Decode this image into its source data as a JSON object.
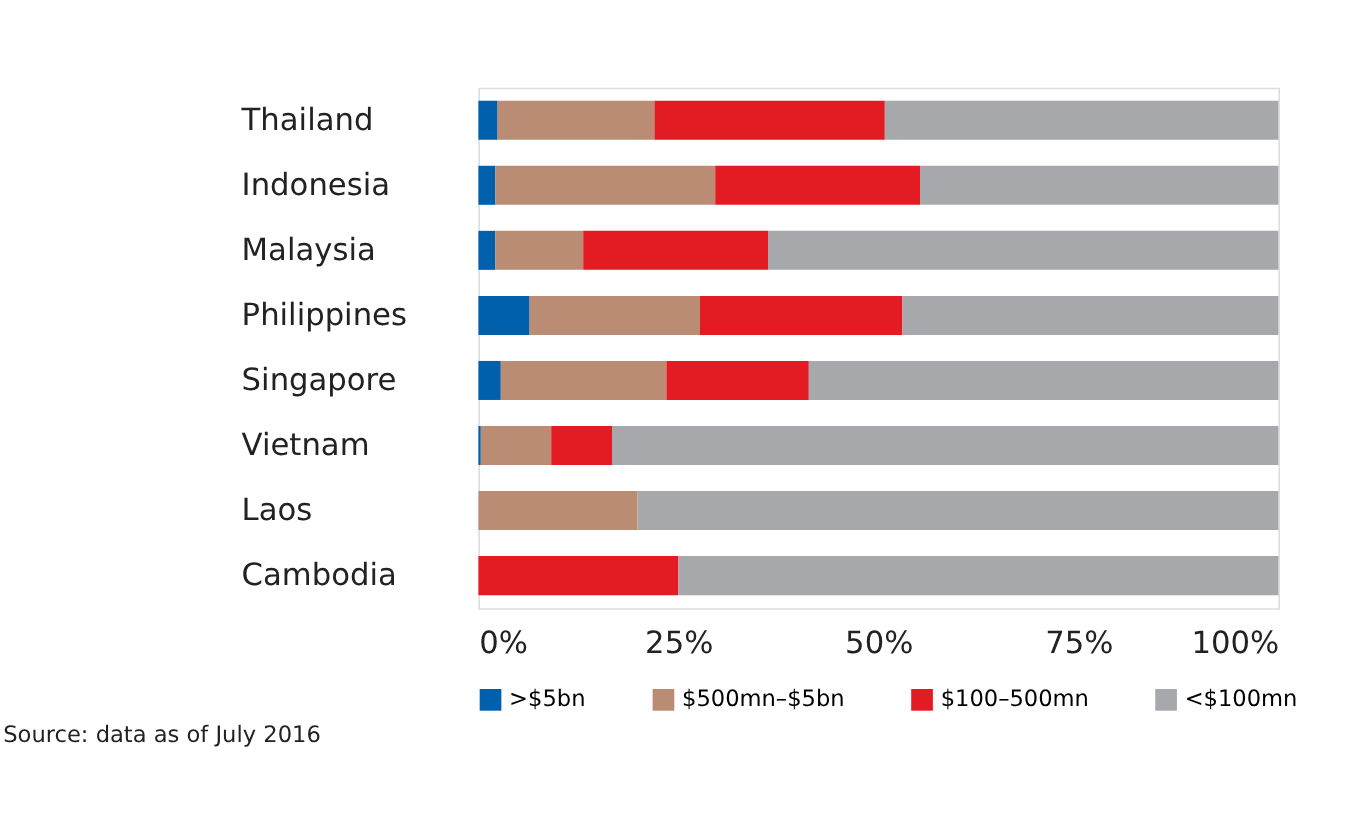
{
  "chart_data": {
    "type": "bar",
    "orientation": "horizontal",
    "stacked": true,
    "categories": [
      "Thailand",
      "Indonesia",
      "Malaysia",
      "Philippines",
      "Singapore",
      "Vietnam",
      "Laos",
      "Cambodia"
    ],
    "series": [
      {
        "name": ">$5bn",
        "color": "#0060ac",
        "values": [
          2.4,
          2.1,
          2.1,
          6.4,
          2.8,
          0.3,
          0,
          0
        ]
      },
      {
        "name": "$500mn–$5bn",
        "color": "#b98c73",
        "values": [
          19.6,
          27.5,
          11.0,
          21.3,
          20.7,
          8.8,
          19.9,
          0
        ]
      },
      {
        "name": "$100–500mn",
        "color": "#e31b23",
        "values": [
          28.8,
          25.6,
          23.1,
          25.3,
          17.8,
          7.6,
          0,
          25.0
        ]
      },
      {
        "name": "<$100mn",
        "color": "#a7a8ab",
        "values": [
          49.2,
          44.8,
          63.8,
          47.0,
          58.7,
          83.3,
          80.1,
          75.0
        ]
      }
    ],
    "xlim": [
      0,
      100
    ],
    "xticks": [
      {
        "value": 0,
        "label": "0%"
      },
      {
        "value": 25,
        "label": "25%"
      },
      {
        "value": 50,
        "label": "50%"
      },
      {
        "value": 75,
        "label": "75%"
      },
      {
        "value": 100,
        "label": "100%"
      }
    ],
    "grid": false,
    "legend": "bottom",
    "annotations": [
      "Source: data as of July 2016"
    ]
  }
}
